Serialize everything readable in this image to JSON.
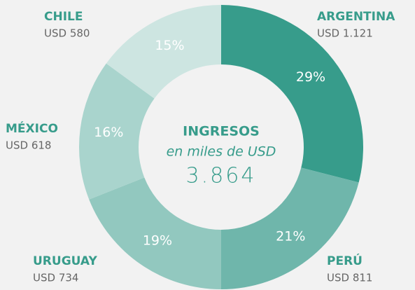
{
  "chart_data": {
    "type": "donut",
    "categories": [
      "ARGENTINA",
      "PERÚ",
      "URUGUAY",
      "MÉXICO",
      "CHILE"
    ],
    "values": [
      29,
      21,
      19,
      16,
      15
    ],
    "value_labels": [
      "29%",
      "21%",
      "19%",
      "16%",
      "15%"
    ],
    "amount_labels": [
      "USD 1.121",
      "USD 811",
      "USD 734",
      "USD 618",
      "USD 580"
    ],
    "colors": [
      "#379c8b",
      "#6fb6ab",
      "#92c8bf",
      "#a9d4cd",
      "#cde5e1"
    ],
    "center_title": "INGRESOS",
    "center_subtitle": "en miles de USD",
    "center_total": "3.864"
  }
}
